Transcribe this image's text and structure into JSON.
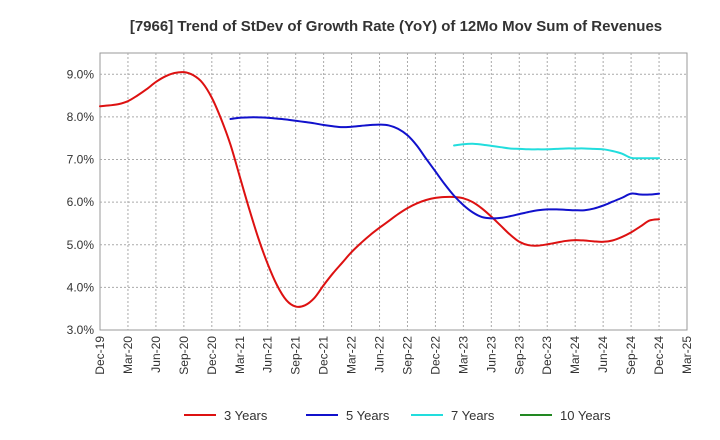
{
  "chart_data": {
    "type": "line",
    "title": "[7966]  Trend of StDev of Growth Rate (YoY) of 12Mo Mov Sum of Revenues",
    "xlabel": "",
    "ylabel": "",
    "ylim": [
      3.0,
      9.5
    ],
    "y_ticks": [
      3.0,
      4.0,
      5.0,
      6.0,
      7.0,
      8.0,
      9.0
    ],
    "y_tick_labels": [
      "3.0%",
      "4.0%",
      "5.0%",
      "6.0%",
      "7.0%",
      "8.0%",
      "9.0%"
    ],
    "x_tick_labels": [
      "Dec-19",
      "Mar-20",
      "Jun-20",
      "Sep-20",
      "Dec-20",
      "Mar-21",
      "Jun-21",
      "Sep-21",
      "Dec-21",
      "Mar-22",
      "Jun-22",
      "Sep-22",
      "Dec-22",
      "Mar-23",
      "Jun-23",
      "Sep-23",
      "Dec-23",
      "Mar-24",
      "Jun-24",
      "Sep-24",
      "Dec-24",
      "Mar-25"
    ],
    "x_range_months": [
      0,
      63
    ],
    "grid": true,
    "legend_position": "bottom",
    "series": [
      {
        "name": "3 Years",
        "color": "#dd1111",
        "x_months": [
          0,
          1,
          2,
          3,
          4,
          5,
          6,
          7,
          8,
          9,
          10,
          11,
          12,
          13,
          14,
          15,
          16,
          17,
          18,
          19,
          20,
          21,
          22,
          23,
          24,
          25,
          26,
          27,
          28,
          29,
          30,
          31,
          32,
          33,
          34,
          35,
          36,
          37,
          38,
          39,
          40,
          41,
          42,
          43,
          44,
          45,
          46,
          47,
          48,
          49,
          50,
          51,
          52,
          53,
          54,
          55,
          56,
          57,
          58,
          59,
          60
        ],
        "values": [
          8.25,
          8.27,
          8.3,
          8.37,
          8.5,
          8.65,
          8.82,
          8.95,
          9.03,
          9.05,
          8.98,
          8.8,
          8.45,
          7.95,
          7.35,
          6.6,
          5.85,
          5.15,
          4.55,
          4.05,
          3.7,
          3.55,
          3.58,
          3.75,
          4.05,
          4.33,
          4.58,
          4.83,
          5.04,
          5.23,
          5.4,
          5.56,
          5.72,
          5.86,
          5.97,
          6.05,
          6.1,
          6.12,
          6.12,
          6.09,
          6.0,
          5.85,
          5.66,
          5.45,
          5.24,
          5.07,
          4.99,
          4.98,
          5.01,
          5.05,
          5.09,
          5.11,
          5.1,
          5.08,
          5.07,
          5.1,
          5.18,
          5.29,
          5.43,
          5.57,
          5.6
        ]
      },
      {
        "name": "5 Years",
        "color": "#1111cc",
        "x_months": [
          14,
          15,
          16,
          17,
          18,
          19,
          20,
          21,
          22,
          23,
          24,
          25,
          26,
          27,
          28,
          29,
          30,
          31,
          32,
          33,
          34,
          35,
          36,
          37,
          38,
          39,
          40,
          41,
          42,
          43,
          44,
          45,
          46,
          47,
          48,
          49,
          50,
          51,
          52,
          53,
          54,
          55,
          56,
          57,
          58,
          59,
          60
        ],
        "values": [
          7.95,
          7.98,
          7.99,
          7.99,
          7.98,
          7.96,
          7.94,
          7.91,
          7.88,
          7.85,
          7.81,
          7.78,
          7.76,
          7.77,
          7.79,
          7.81,
          7.82,
          7.8,
          7.72,
          7.57,
          7.33,
          7.02,
          6.72,
          6.42,
          6.15,
          5.93,
          5.76,
          5.65,
          5.62,
          5.63,
          5.67,
          5.72,
          5.77,
          5.81,
          5.83,
          5.83,
          5.82,
          5.81,
          5.81,
          5.85,
          5.92,
          6.01,
          6.1,
          6.2,
          6.18,
          6.18,
          6.2
        ]
      },
      {
        "name": "7 Years",
        "color": "#22dddd",
        "x_months": [
          38,
          39,
          40,
          41,
          42,
          43,
          44,
          45,
          46,
          47,
          48,
          49,
          50,
          51,
          52,
          53,
          54,
          55,
          56,
          57,
          58,
          59,
          60
        ],
        "values": [
          7.33,
          7.36,
          7.37,
          7.35,
          7.32,
          7.29,
          7.26,
          7.25,
          7.24,
          7.24,
          7.24,
          7.25,
          7.26,
          7.26,
          7.26,
          7.25,
          7.24,
          7.2,
          7.14,
          7.04,
          7.03,
          7.03,
          7.03
        ]
      },
      {
        "name": "10 Years",
        "color": "#228822",
        "x_months": [],
        "values": []
      }
    ]
  }
}
